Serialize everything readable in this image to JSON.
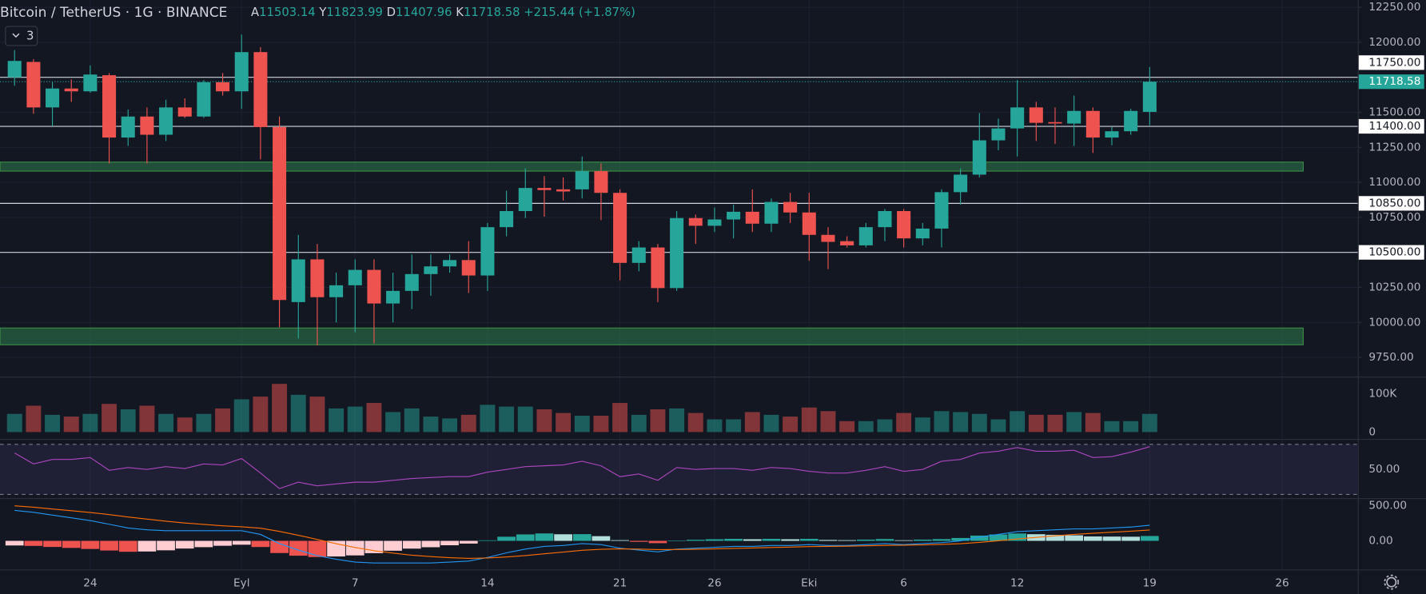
{
  "chart_data": {
    "type": "candlestick",
    "title": "Bitcoin / TetherUS · 1G · BINANCE",
    "legend": {
      "labels": [
        "A",
        "Y",
        "D",
        "K"
      ],
      "values": [
        11503.14,
        11823.99,
        11407.96,
        11718.58
      ],
      "change": "+215.44 (+1.87%)"
    },
    "indicator_toggle": "3",
    "xlim": [
      -0.77,
      71
    ],
    "xticks": [
      {
        "value": 4,
        "label": "24"
      },
      {
        "value": 12,
        "label": "Eyl"
      },
      {
        "value": 18,
        "label": "7"
      },
      {
        "value": 25,
        "label": "14"
      },
      {
        "value": 32,
        "label": "21"
      },
      {
        "value": 37,
        "label": "26"
      },
      {
        "value": 42,
        "label": "Eki"
      },
      {
        "value": 47,
        "label": "6"
      },
      {
        "value": 53,
        "label": "12"
      },
      {
        "value": 60,
        "label": "19"
      },
      {
        "value": 67,
        "label": "26"
      }
    ],
    "ylim": [
      9613,
      12302
    ],
    "yticks": [
      {
        "value": 12250,
        "label": "12250.00"
      },
      {
        "value": 12000,
        "label": "12000.00"
      },
      {
        "value": 11500,
        "label": "11500.00"
      },
      {
        "value": 11250,
        "label": "11250.00"
      },
      {
        "value": 11000,
        "label": "11000.00"
      },
      {
        "value": 10750,
        "label": "10750.00"
      },
      {
        "value": 10250,
        "label": "10250.00"
      },
      {
        "value": 10000,
        "label": "10000.00"
      },
      {
        "value": 9750,
        "label": "9750.00"
      }
    ],
    "up_color": "#26a69a",
    "down_color": "#ef5350",
    "open": [
      11750,
      11860,
      11535,
      11670,
      11650,
      11765,
      11320,
      11470,
      11340,
      11535,
      11470,
      11715,
      11650,
      11930,
      11395,
      10145,
      10450,
      10180,
      10265,
      10375,
      10135,
      10225,
      10345,
      10400,
      10445,
      10335,
      10680,
      10795,
      10960,
      10950,
      10950,
      11080,
      10925,
      10425,
      10535,
      10245,
      10745,
      10690,
      10735,
      10790,
      10705,
      10860,
      10785,
      10625,
      10580,
      10550,
      10680,
      10795,
      10600,
      10670,
      10930,
      11055,
      11300,
      11385,
      11535,
      11430,
      11420,
      11510,
      11320,
      11365,
      11503.14
    ],
    "high": [
      11945,
      11880,
      11715,
      11735,
      11835,
      11780,
      11520,
      11535,
      11590,
      11600,
      11730,
      11780,
      12055,
      11965,
      11470,
      10625,
      10560,
      10355,
      10450,
      10450,
      10355,
      10485,
      10485,
      10485,
      10580,
      10710,
      10940,
      11100,
      11045,
      11035,
      11185,
      11135,
      10950,
      10580,
      10560,
      10795,
      10770,
      10820,
      10840,
      10950,
      10885,
      10925,
      10925,
      10680,
      10615,
      10710,
      10810,
      10810,
      10710,
      10950,
      11100,
      11495,
      11455,
      11730,
      11575,
      11535,
      11620,
      11535,
      11395,
      11525,
      11823.99
    ],
    "low": [
      11690,
      11490,
      11395,
      11575,
      11640,
      11135,
      11260,
      11135,
      11295,
      11460,
      11460,
      11620,
      11525,
      11165,
      9965,
      9885,
      9835,
      10000,
      9930,
      9850,
      10000,
      10095,
      10190,
      10355,
      10210,
      10225,
      10615,
      10745,
      10755,
      10870,
      10885,
      10730,
      10300,
      10365,
      10145,
      10225,
      10560,
      10645,
      10600,
      10645,
      10645,
      10710,
      10440,
      10380,
      10535,
      10535,
      10580,
      10535,
      10550,
      10535,
      10840,
      11035,
      11230,
      11185,
      11295,
      11275,
      11260,
      11210,
      11265,
      11340,
      11407.96
    ],
    "close": [
      11867,
      11535,
      11670,
      11650,
      11770,
      11320,
      11470,
      11340,
      11535,
      11470,
      11715,
      11650,
      11930,
      11395,
      10160,
      10450,
      10180,
      10265,
      10375,
      10135,
      10225,
      10345,
      10400,
      10445,
      10335,
      10680,
      10795,
      10960,
      10945,
      10935,
      11080,
      10925,
      10425,
      10535,
      10245,
      10745,
      10690,
      10735,
      10790,
      10705,
      10860,
      10785,
      10625,
      10575,
      10550,
      10680,
      10795,
      10600,
      10670,
      10930,
      11055,
      11300,
      11385,
      11535,
      11425,
      11420,
      11510,
      11320,
      11365,
      11510,
      11718.58
    ],
    "price_lines": [
      {
        "value": 11750,
        "label": "11750.00"
      },
      {
        "value": 11400,
        "label": "11400.00"
      },
      {
        "value": 10850,
        "label": "10850.00"
      },
      {
        "value": 10500,
        "label": "10500.00"
      }
    ],
    "last_price": {
      "value": 11718.58,
      "label": "11718.58"
    },
    "zones": [
      [
        11080,
        11145
      ],
      [
        9840,
        9960
      ]
    ],
    "zone_color": "#2e7d4f",
    "volume": {
      "values": [
        47600,
        69000,
        45200,
        40500,
        47600,
        73800,
        59500,
        69000,
        47600,
        38100,
        47600,
        61900,
        85700,
        92900,
        126200,
        97600,
        92900,
        61900,
        66700,
        76200,
        52400,
        61900,
        40500,
        35700,
        45200,
        71400,
        66700,
        66700,
        59500,
        50000,
        42900,
        42900,
        76200,
        45200,
        59500,
        61900,
        50000,
        33300,
        33300,
        52400,
        45200,
        40500,
        64300,
        54800,
        28600,
        28600,
        33300,
        50000,
        38100,
        54800,
        52400,
        47600,
        33300,
        54800,
        45200,
        45200,
        52400,
        50000,
        28600,
        28600,
        47600
      ],
      "ylim": [
        -16700,
        142900
      ],
      "yticks": [
        {
          "value": 100000,
          "label": "100K"
        },
        0
      ]
    },
    "rsi": {
      "values": [
        63.1,
        54.4,
        58.0,
        58.0,
        59.5,
        49.3,
        51.5,
        50.0,
        52.2,
        50.7,
        54.4,
        53.6,
        58.7,
        47.1,
        34.7,
        39.8,
        36.9,
        38.4,
        39.8,
        39.8,
        41.3,
        42.7,
        43.5,
        44.2,
        44.2,
        47.8,
        50.0,
        52.2,
        52.9,
        53.6,
        56.5,
        52.9,
        44.2,
        46.4,
        41.3,
        51.5,
        50.0,
        50.7,
        50.7,
        49.3,
        51.5,
        50.7,
        48.5,
        47.1,
        47.1,
        49.3,
        52.2,
        48.5,
        50.0,
        56.5,
        58.0,
        63.1,
        64.5,
        67.5,
        64.5,
        64.5,
        65.3,
        59.5,
        60.2,
        63.8,
        68.2
      ],
      "ylim": [
        27.5,
        73.3
      ],
      "yticks": [
        {
          "value": 50,
          "label": "50.00"
        }
      ],
      "bands": [
        30,
        70
      ],
      "color": "#ab47bc"
    },
    "macd": {
      "values": [
        434,
        408,
        368,
        329,
        289,
        237,
        184,
        158,
        145,
        145,
        145,
        145,
        145,
        92,
        -39,
        -132,
        -211,
        -263,
        -303,
        -316,
        -316,
        -316,
        -316,
        -303,
        -289,
        -237,
        -171,
        -118,
        -79,
        -66,
        -39,
        -53,
        -105,
        -132,
        -158,
        -118,
        -105,
        -92,
        -79,
        -79,
        -66,
        -66,
        -53,
        -66,
        -66,
        -53,
        -39,
        -53,
        -39,
        -26,
        0,
        53,
        92,
        132,
        145,
        158,
        171,
        171,
        184,
        197,
        224
      ],
      "signal": [
        500,
        480,
        455,
        430,
        405,
        375,
        340,
        310,
        280,
        255,
        235,
        215,
        200,
        180,
        135,
        80,
        20,
        -40,
        -95,
        -140,
        -175,
        -205,
        -225,
        -240,
        -250,
        -245,
        -230,
        -210,
        -185,
        -160,
        -135,
        -120,
        -115,
        -118,
        -125,
        -123,
        -120,
        -115,
        -108,
        -102,
        -95,
        -89,
        -82,
        -79,
        -76,
        -71,
        -65,
        -62,
        -57,
        -51,
        -41,
        -22,
        1,
        27,
        50,
        72,
        92,
        108,
        123,
        138,
        155
      ],
      "histogram": [
        -66,
        -72,
        -87,
        -101,
        -116,
        -138,
        -156,
        -152,
        -135,
        -110,
        -90,
        -70,
        -55,
        -88,
        -174,
        -212,
        -231,
        -223,
        -208,
        -176,
        -141,
        -111,
        -91,
        -63,
        -39,
        8,
        59,
        92,
        106,
        94,
        96,
        67,
        10,
        -14,
        -33,
        5,
        15,
        23,
        29,
        23,
        29,
        23,
        29,
        13,
        10,
        18,
        26,
        9,
        18,
        25,
        41,
        75,
        91,
        105,
        95,
        86,
        79,
        63,
        61,
        59,
        69
      ],
      "ylim": [
        -408,
        592
      ],
      "yticks": [
        {
          "value": 500,
          "label": "500.00"
        },
        {
          "value": 0,
          "label": "0.00"
        }
      ],
      "macd_color": "#2196f3",
      "signal_color": "#ff6d00"
    }
  }
}
